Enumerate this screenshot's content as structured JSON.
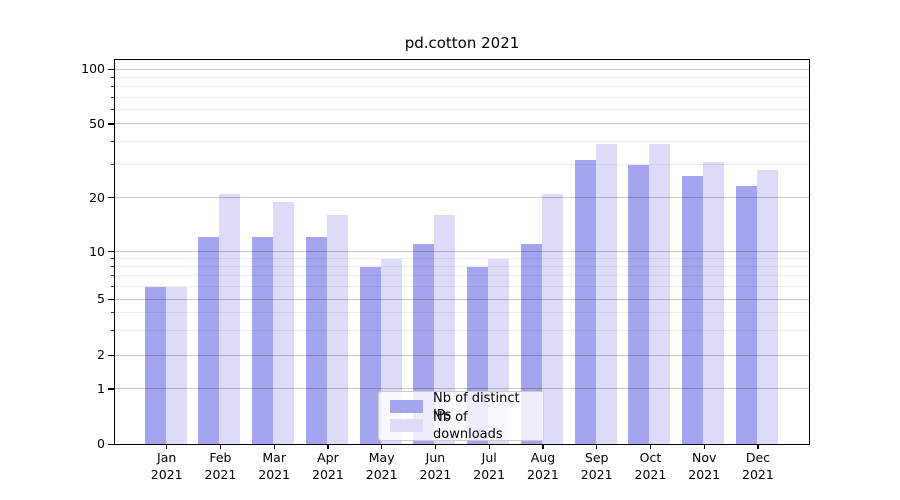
{
  "title": "pd.cotton 2021",
  "chart_data": {
    "type": "bar",
    "title": "pd.cotton 2021",
    "xlabel": "",
    "ylabel": "",
    "categories": [
      "Jan 2021",
      "Feb 2021",
      "Mar 2021",
      "Apr 2021",
      "May 2021",
      "Jun 2021",
      "Jul 2021",
      "Aug 2021",
      "Sep 2021",
      "Oct 2021",
      "Nov 2021",
      "Dec 2021"
    ],
    "series": [
      {
        "name": "Nb of distinct IPs",
        "color": "#a5a5ef",
        "values": [
          6,
          12,
          12,
          12,
          8,
          11,
          8,
          11,
          32,
          30,
          26,
          23
        ]
      },
      {
        "name": "Nb of downloads",
        "color": "#dcdcf8",
        "values": [
          6,
          21,
          19,
          16,
          9,
          16,
          9,
          21,
          39,
          39,
          31,
          28
        ]
      }
    ],
    "yscale": "symlog",
    "yticks": [
      0,
      1,
      2,
      5,
      10,
      20,
      50,
      100
    ],
    "yminorticks": [
      3,
      4,
      6,
      7,
      8,
      9,
      30,
      40,
      60,
      70,
      80,
      90
    ],
    "ylim": [
      0,
      120
    ],
    "grid": true,
    "legend_position": "lower center"
  }
}
